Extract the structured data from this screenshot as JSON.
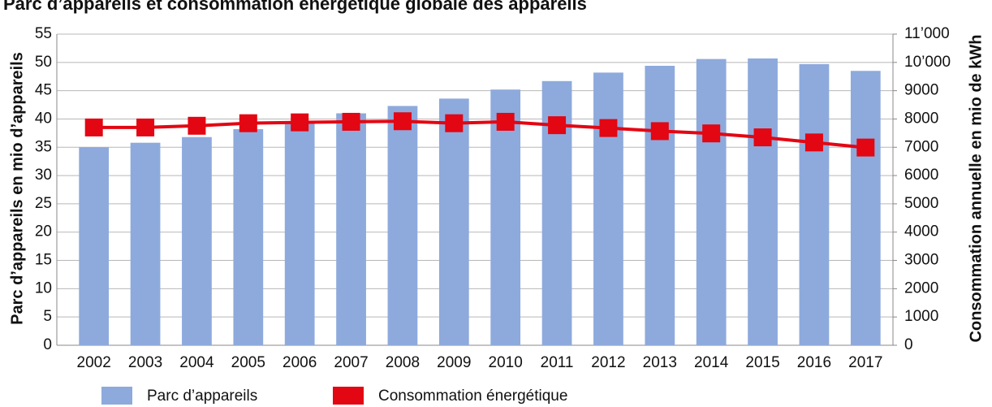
{
  "chart_data": {
    "type": "bar_line",
    "title": "Parc d’appareils et consommation énergétique globale des appareils",
    "ylabel": "Parc d’appareils en mio d’appareils",
    "y2label": "Consommation annuelle en mio de kWh",
    "categories": [
      "2002",
      "2003",
      "2004",
      "2005",
      "2006",
      "2007",
      "2008",
      "2009",
      "2010",
      "2011",
      "2012",
      "2013",
      "2014",
      "2015",
      "2016",
      "2017"
    ],
    "series": [
      {
        "name": "Parc d’appareils",
        "type": "bar",
        "color": "#8eaadc",
        "values": [
          35,
          35.8,
          36.8,
          38.2,
          39.5,
          41,
          42.3,
          43.6,
          45.2,
          46.7,
          48.2,
          49.4,
          50.6,
          50.7,
          49.7,
          48.5
        ]
      },
      {
        "name": "Consommation énergétique",
        "type": "line",
        "axis": "y2",
        "color": "#e30613",
        "values": [
          7700,
          7700,
          7760,
          7850,
          7880,
          7900,
          7920,
          7850,
          7900,
          7780,
          7680,
          7570,
          7490,
          7350,
          7170,
          6990
        ]
      }
    ],
    "ylim": [
      0,
      55
    ],
    "yticks": [
      0,
      5,
      10,
      15,
      20,
      25,
      30,
      35,
      40,
      45,
      50,
      55
    ],
    "y2lim": [
      0,
      11000
    ],
    "y2ticks": [
      0,
      1000,
      2000,
      3000,
      4000,
      5000,
      6000,
      7000,
      8000,
      9000,
      {
        "value": 10000,
        "label": "10’000"
      },
      {
        "value": 11000,
        "label": "11’000"
      }
    ],
    "grid": true,
    "legend": "bottom"
  }
}
